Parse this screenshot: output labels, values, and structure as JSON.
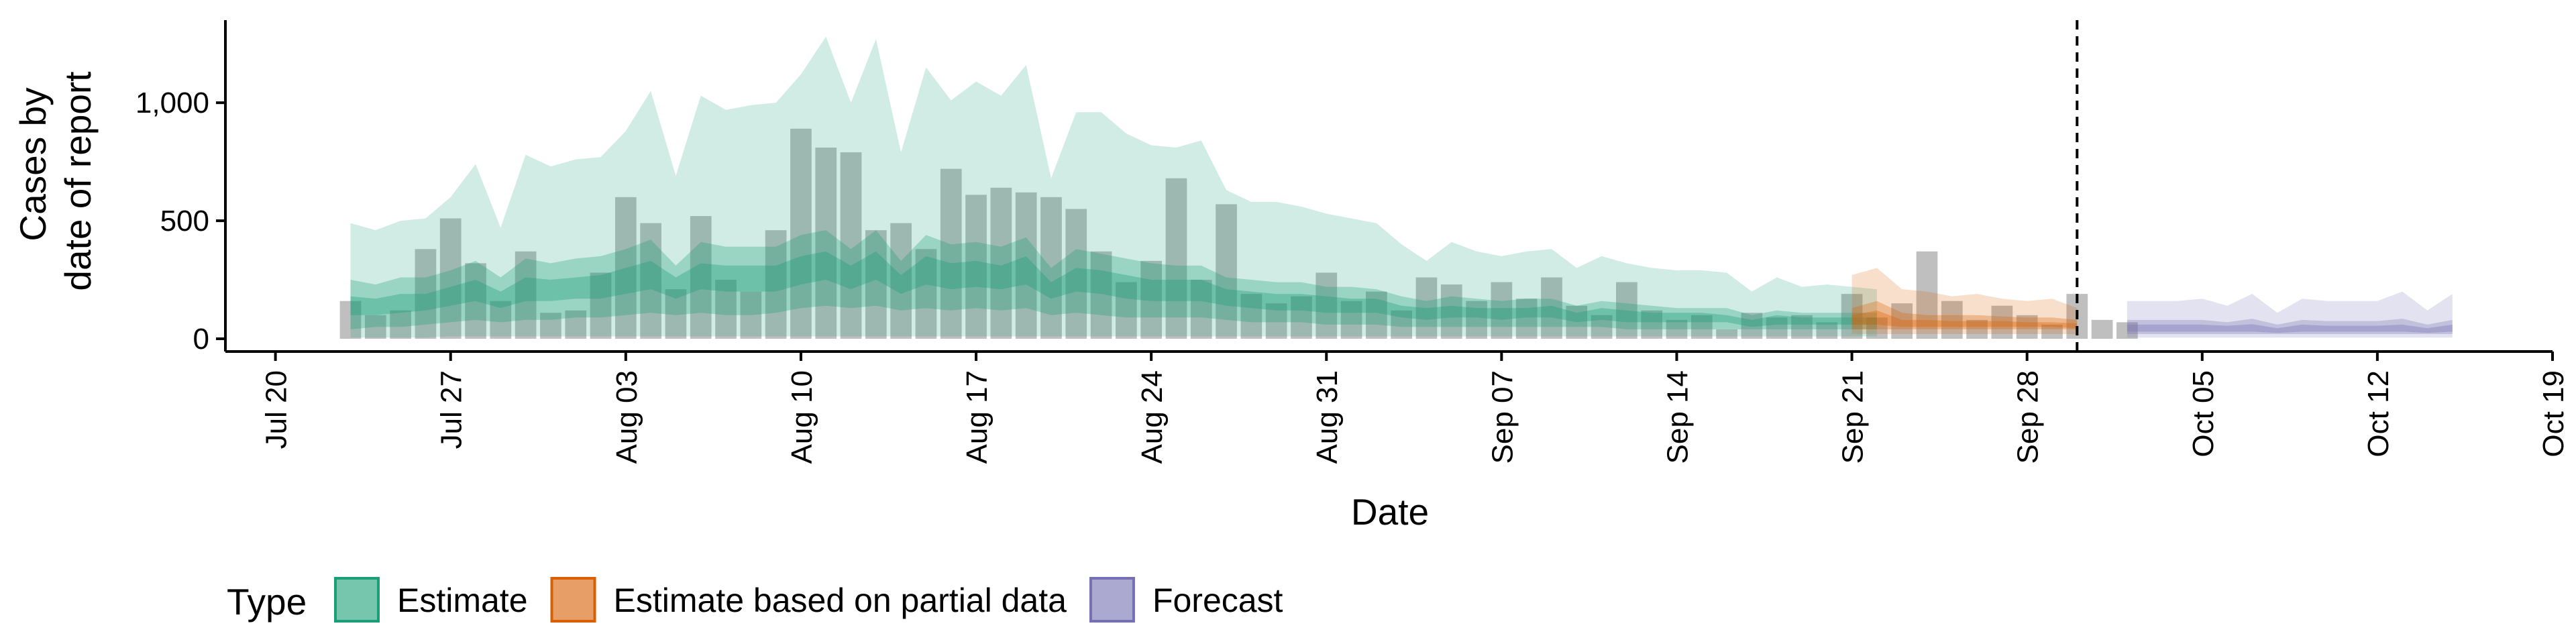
{
  "chart_data": {
    "type": "area",
    "title": "",
    "xlabel": "Date",
    "ylabel": [
      "Cases by",
      "date of report"
    ],
    "ylim": [
      0,
      1350
    ],
    "xlim": [
      "2020-07-18",
      "2020-10-19"
    ],
    "x_ticks": [
      {
        "date": "2020-07-20",
        "label": "Jul 20"
      },
      {
        "date": "2020-07-27",
        "label": "Jul 27"
      },
      {
        "date": "2020-08-03",
        "label": "Aug 03"
      },
      {
        "date": "2020-08-10",
        "label": "Aug 10"
      },
      {
        "date": "2020-08-17",
        "label": "Aug 17"
      },
      {
        "date": "2020-08-24",
        "label": "Aug 24"
      },
      {
        "date": "2020-08-31",
        "label": "Aug 31"
      },
      {
        "date": "2020-09-07",
        "label": "Sep 07"
      },
      {
        "date": "2020-09-14",
        "label": "Sep 14"
      },
      {
        "date": "2020-09-21",
        "label": "Sep 21"
      },
      {
        "date": "2020-09-28",
        "label": "Sep 28"
      },
      {
        "date": "2020-10-05",
        "label": "Oct 05"
      },
      {
        "date": "2020-10-12",
        "label": "Oct 12"
      },
      {
        "date": "2020-10-19",
        "label": "Oct 19"
      }
    ],
    "y_ticks": [
      {
        "value": 0,
        "label": "0"
      },
      {
        "value": 500,
        "label": "500"
      },
      {
        "value": 1000,
        "label": "1,000"
      }
    ],
    "grid": false,
    "vline_date": "2020-09-30",
    "legend": {
      "title": "Type",
      "position": "bottom",
      "items": [
        {
          "label": "Estimate",
          "fill": "#1b9e77",
          "border": "#1b9e77"
        },
        {
          "label": "Estimate based on partial data",
          "fill": "#d95f02",
          "border": "#d95f02"
        },
        {
          "label": "Forecast",
          "fill": "#7570b3",
          "border": "#7570b3"
        }
      ]
    },
    "colors": {
      "estimate": "#1b9e77",
      "partial": "#d95f02",
      "forecast": "#7570b3",
      "bars": "#a9a9a9",
      "axis": "#000000"
    },
    "bars": {
      "start_date": "2020-07-23",
      "values": [
        160,
        100,
        120,
        380,
        510,
        320,
        160,
        370,
        110,
        120,
        280,
        600,
        490,
        210,
        520,
        250,
        200,
        460,
        890,
        810,
        790,
        460,
        490,
        380,
        720,
        610,
        640,
        620,
        600,
        550,
        370,
        240,
        330,
        680,
        250,
        570,
        190,
        150,
        180,
        280,
        160,
        200,
        120,
        260,
        230,
        160,
        240,
        170,
        260,
        140,
        100,
        240,
        120,
        80,
        100,
        40,
        110,
        90,
        100,
        70,
        190,
        90,
        150,
        370,
        160,
        80,
        140,
        100,
        60,
        190,
        80,
        70
      ]
    },
    "series": [
      {
        "name": "Estimate",
        "start_date": "2020-07-23",
        "lower_90": [
          5,
          5,
          5,
          5,
          10,
          10,
          10,
          10,
          10,
          10,
          10,
          10,
          10,
          10,
          10,
          10,
          10,
          10,
          10,
          10,
          10,
          10,
          10,
          10,
          10,
          10,
          10,
          10,
          10,
          10,
          10,
          10,
          10,
          10,
          10,
          10,
          10,
          10,
          10,
          10,
          10,
          10,
          10,
          10,
          10,
          10,
          10,
          10,
          10,
          10,
          10,
          10,
          10,
          10,
          10,
          10,
          10,
          10,
          10,
          10,
          10,
          10
        ],
        "upper_90": [
          490,
          460,
          500,
          510,
          600,
          740,
          470,
          780,
          730,
          760,
          770,
          880,
          1050,
          690,
          1030,
          970,
          990,
          1000,
          1120,
          1280,
          1000,
          1270,
          790,
          1150,
          1010,
          1090,
          1030,
          1160,
          680,
          960,
          960,
          870,
          820,
          810,
          840,
          630,
          580,
          580,
          560,
          530,
          510,
          490,
          400,
          330,
          410,
          370,
          350,
          370,
          380,
          300,
          350,
          320,
          300,
          290,
          290,
          280,
          200,
          260,
          220,
          230,
          220,
          210
        ],
        "lower_50": [
          40,
          50,
          50,
          60,
          70,
          80,
          70,
          80,
          80,
          90,
          90,
          100,
          110,
          100,
          110,
          100,
          100,
          110,
          130,
          140,
          130,
          140,
          120,
          130,
          120,
          130,
          120,
          130,
          100,
          110,
          100,
          90,
          90,
          90,
          90,
          80,
          70,
          70,
          70,
          60,
          60,
          60,
          50,
          50,
          50,
          50,
          50,
          50,
          50,
          50,
          50,
          40,
          40,
          40,
          40,
          40,
          40,
          40,
          40,
          40,
          40,
          40
        ],
        "upper_50": [
          250,
          230,
          260,
          260,
          290,
          330,
          260,
          340,
          320,
          340,
          350,
          380,
          420,
          310,
          410,
          390,
          390,
          390,
          440,
          460,
          380,
          460,
          330,
          440,
          400,
          410,
          390,
          430,
          300,
          380,
          360,
          340,
          320,
          310,
          310,
          260,
          250,
          240,
          240,
          220,
          220,
          210,
          180,
          160,
          180,
          170,
          160,
          170,
          170,
          140,
          160,
          150,
          140,
          130,
          130,
          130,
          100,
          120,
          110,
          110,
          110,
          110
        ],
        "lower_20": [
          100,
          100,
          110,
          120,
          140,
          160,
          130,
          160,
          160,
          170,
          170,
          190,
          210,
          170,
          210,
          200,
          200,
          200,
          230,
          250,
          210,
          250,
          190,
          230,
          210,
          220,
          210,
          230,
          170,
          200,
          190,
          170,
          160,
          160,
          160,
          140,
          130,
          120,
          120,
          110,
          110,
          110,
          90,
          80,
          90,
          90,
          80,
          90,
          90,
          70,
          80,
          70,
          70,
          70,
          70,
          70,
          50,
          60,
          60,
          60,
          60,
          60
        ],
        "upper_20": [
          180,
          170,
          190,
          190,
          220,
          250,
          200,
          260,
          250,
          260,
          270,
          300,
          330,
          260,
          320,
          310,
          310,
          310,
          350,
          370,
          310,
          370,
          270,
          350,
          320,
          330,
          310,
          350,
          240,
          300,
          290,
          270,
          250,
          250,
          250,
          210,
          200,
          190,
          190,
          180,
          170,
          170,
          140,
          130,
          140,
          130,
          130,
          130,
          140,
          110,
          130,
          120,
          110,
          110,
          110,
          100,
          80,
          100,
          90,
          90,
          90,
          90
        ]
      },
      {
        "name": "Estimate based on partial data",
        "start_date": "2020-09-21",
        "lower_90": [
          20,
          20,
          20,
          20,
          20,
          20,
          20,
          20,
          20,
          20
        ],
        "upper_90": [
          270,
          300,
          210,
          200,
          180,
          190,
          170,
          160,
          170,
          130
        ],
        "lower_50": [
          40,
          40,
          40,
          40,
          40,
          40,
          40,
          40,
          40,
          40
        ],
        "upper_50": [
          130,
          160,
          110,
          100,
          100,
          100,
          95,
          90,
          90,
          80
        ],
        "lower_20": [
          60,
          60,
          50,
          50,
          50,
          50,
          50,
          50,
          50,
          45
        ],
        "upper_20": [
          100,
          120,
          80,
          80,
          75,
          75,
          75,
          70,
          70,
          65
        ]
      },
      {
        "name": "Forecast",
        "start_date": "2020-10-02",
        "lower_90": [
          5,
          5,
          5,
          5,
          5,
          5,
          5,
          5,
          5,
          5,
          5,
          5,
          5,
          5
        ],
        "upper_90": [
          160,
          160,
          160,
          170,
          140,
          190,
          110,
          170,
          160,
          160,
          160,
          200,
          120,
          190
        ],
        "lower_50": [
          20,
          20,
          20,
          20,
          20,
          20,
          20,
          20,
          20,
          20,
          20,
          20,
          20,
          20
        ],
        "upper_50": [
          80,
          80,
          80,
          80,
          70,
          85,
          60,
          80,
          75,
          75,
          75,
          85,
          60,
          80
        ],
        "lower_20": [
          30,
          30,
          30,
          30,
          30,
          30,
          25,
          30,
          30,
          30,
          30,
          30,
          25,
          30
        ],
        "upper_20": [
          60,
          60,
          60,
          60,
          55,
          62,
          45,
          60,
          55,
          55,
          55,
          60,
          45,
          60
        ]
      }
    ]
  }
}
